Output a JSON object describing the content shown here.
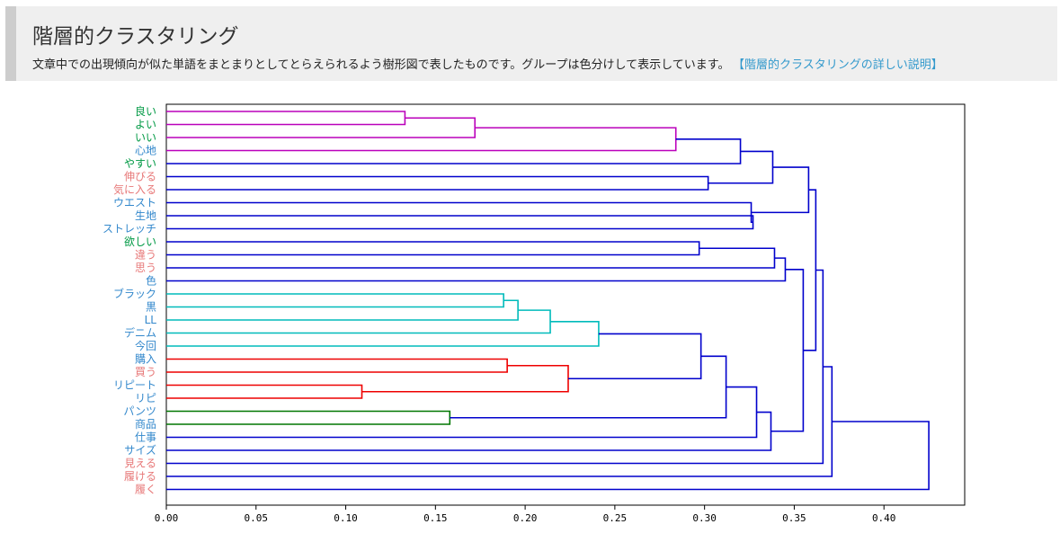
{
  "header": {
    "title": "階層的クラスタリング",
    "description": "文章中での出現傾向が似た単語をまとまりとしてとらえられるよう樹形図で表したものです。グループは色分けして表示しています。",
    "link_text": "【階層的クラスタリングの詳しい説明】"
  },
  "chart_data": {
    "type": "dendrogram",
    "orientation": "horizontal",
    "title": "",
    "xlabel": "",
    "ylabel": "",
    "xlim": [
      0,
      0.445
    ],
    "xticks": [
      0.0,
      0.05,
      0.1,
      0.15,
      0.2,
      0.25,
      0.3,
      0.35,
      0.4
    ],
    "xtick_labels": [
      "0.00",
      "0.05",
      "0.10",
      "0.15",
      "0.20",
      "0.25",
      "0.30",
      "0.35",
      "0.40"
    ],
    "colors": {
      "link_default": "#0000cc",
      "cluster_magenta": "#bb00bb",
      "cluster_cyan": "#00bbbb",
      "cluster_red": "#ee0000",
      "cluster_green": "#007700",
      "label_green": "#009944",
      "label_pink": "#e77777",
      "label_blue": "#3388cc"
    },
    "leaves": [
      {
        "label": "良い",
        "color": "#009944"
      },
      {
        "label": "よい",
        "color": "#009944"
      },
      {
        "label": "いい",
        "color": "#009944"
      },
      {
        "label": "心地",
        "color": "#3388cc"
      },
      {
        "label": "やすい",
        "color": "#009944"
      },
      {
        "label": "伸びる",
        "color": "#e77777"
      },
      {
        "label": "気に入る",
        "color": "#e77777"
      },
      {
        "label": "ウエスト",
        "color": "#3388cc"
      },
      {
        "label": "生地",
        "color": "#3388cc"
      },
      {
        "label": "ストレッチ",
        "color": "#3388cc"
      },
      {
        "label": "欲しい",
        "color": "#009944"
      },
      {
        "label": "違う",
        "color": "#e77777"
      },
      {
        "label": "思う",
        "color": "#e77777"
      },
      {
        "label": "色",
        "color": "#3388cc"
      },
      {
        "label": "ブラック",
        "color": "#3388cc"
      },
      {
        "label": "黒",
        "color": "#3388cc"
      },
      {
        "label": "LL",
        "color": "#3388cc"
      },
      {
        "label": "デニム",
        "color": "#3388cc"
      },
      {
        "label": "今回",
        "color": "#3388cc"
      },
      {
        "label": "購入",
        "color": "#3388cc"
      },
      {
        "label": "買う",
        "color": "#e77777"
      },
      {
        "label": "リピート",
        "color": "#3388cc"
      },
      {
        "label": "リピ",
        "color": "#3388cc"
      },
      {
        "label": "パンツ",
        "color": "#3388cc"
      },
      {
        "label": "商品",
        "color": "#3388cc"
      },
      {
        "label": "仕事",
        "color": "#3388cc"
      },
      {
        "label": "サイズ",
        "color": "#3388cc"
      },
      {
        "label": "見える",
        "color": "#e77777"
      },
      {
        "label": "履ける",
        "color": "#e77777"
      },
      {
        "label": "履く",
        "color": "#e77777"
      }
    ],
    "merges": [
      {
        "id": "m1",
        "left": 0,
        "right": 1,
        "height": 0.133,
        "color": "#bb00bb"
      },
      {
        "id": "m2",
        "left": "m1",
        "right": 2,
        "height": 0.172,
        "color": "#bb00bb"
      },
      {
        "id": "m3",
        "left": "m2",
        "right": 3,
        "height": 0.284,
        "color": "#bb00bb"
      },
      {
        "id": "m4",
        "left": "m3",
        "right": 4,
        "height": 0.32,
        "color": "#0000cc"
      },
      {
        "id": "m5",
        "left": 5,
        "right": 6,
        "height": 0.302,
        "color": "#0000cc"
      },
      {
        "id": "m6",
        "left": "m4",
        "right": "m5",
        "height": 0.338,
        "color": "#0000cc"
      },
      {
        "id": "m7",
        "left": 8,
        "right": 9,
        "height": 0.327,
        "color": "#0000cc"
      },
      {
        "id": "m8",
        "left": 7,
        "right": "m7",
        "height": 0.326,
        "color": "#0000cc"
      },
      {
        "id": "m9",
        "left": "m6",
        "right": "m8",
        "height": 0.358,
        "color": "#0000cc"
      },
      {
        "id": "m10",
        "left": 10,
        "right": 11,
        "height": 0.297,
        "color": "#0000cc"
      },
      {
        "id": "m11",
        "left": "m10",
        "right": 12,
        "height": 0.339,
        "color": "#0000cc"
      },
      {
        "id": "m12",
        "left": "m11",
        "right": 13,
        "height": 0.345,
        "color": "#0000cc"
      },
      {
        "id": "m13",
        "left": 14,
        "right": 15,
        "height": 0.188,
        "color": "#00bbbb"
      },
      {
        "id": "m14",
        "left": "m13",
        "right": 16,
        "height": 0.196,
        "color": "#00bbbb"
      },
      {
        "id": "m15",
        "left": "m14",
        "right": 17,
        "height": 0.214,
        "color": "#00bbbb"
      },
      {
        "id": "m16",
        "left": "m15",
        "right": 18,
        "height": 0.241,
        "color": "#00bbbb"
      },
      {
        "id": "m17",
        "left": 19,
        "right": 20,
        "height": 0.19,
        "color": "#ee0000"
      },
      {
        "id": "m18",
        "left": 21,
        "right": 22,
        "height": 0.109,
        "color": "#ee0000"
      },
      {
        "id": "m19",
        "left": "m17",
        "right": "m18",
        "height": 0.224,
        "color": "#ee0000"
      },
      {
        "id": "m20",
        "left": "m16",
        "right": "m19",
        "height": 0.298,
        "color": "#0000cc"
      },
      {
        "id": "m21",
        "left": 23,
        "right": 24,
        "height": 0.158,
        "color": "#007700"
      },
      {
        "id": "m22",
        "left": "m20",
        "right": "m21",
        "height": 0.312,
        "color": "#0000cc"
      },
      {
        "id": "m23",
        "left": "m22",
        "right": 25,
        "height": 0.329,
        "color": "#0000cc"
      },
      {
        "id": "m24",
        "left": "m23",
        "right": 26,
        "height": 0.337,
        "color": "#0000cc"
      },
      {
        "id": "m25",
        "left": "m12",
        "right": "m24",
        "height": 0.355,
        "color": "#0000cc"
      },
      {
        "id": "m26",
        "left": "m9",
        "right": "m25",
        "height": 0.362,
        "color": "#0000cc"
      },
      {
        "id": "m27",
        "left": "m26",
        "right": 27,
        "height": 0.366,
        "color": "#0000cc"
      },
      {
        "id": "m28",
        "left": "m27",
        "right": 28,
        "height": 0.371,
        "color": "#0000cc"
      },
      {
        "id": "m29",
        "left": "m28",
        "right": 29,
        "height": 0.425,
        "color": "#0000cc"
      }
    ]
  }
}
